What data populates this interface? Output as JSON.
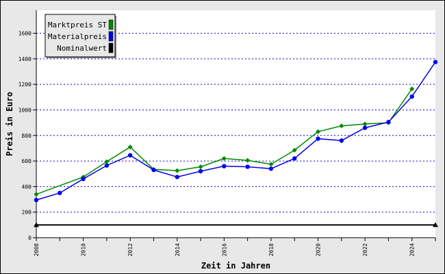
{
  "chart_data": {
    "type": "line",
    "xlabel": "Zeit in Jahren",
    "ylabel": "Preis in Euro",
    "xlim": [
      2008,
      2025
    ],
    "ylim": [
      0,
      1780
    ],
    "x_ticks": [
      2008,
      2010,
      2012,
      2014,
      2016,
      2018,
      2020,
      2022,
      2024
    ],
    "y_ticks": [
      0,
      200,
      400,
      600,
      800,
      1000,
      1200,
      1400,
      1600
    ],
    "grid": "horizontal dotted",
    "legend_position": "top-left",
    "series": [
      {
        "name": "Marktpreis ST",
        "color": "#008800",
        "marker": "diamond",
        "x": [
          2008,
          2010,
          2011,
          2012,
          2013,
          2014,
          2015,
          2016,
          2017,
          2018,
          2019,
          2020,
          2021,
          2022,
          2023,
          2024
        ],
        "values": [
          340,
          475,
          595,
          710,
          535,
          525,
          555,
          620,
          605,
          575,
          685,
          830,
          875,
          890,
          900,
          1165
        ]
      },
      {
        "name": "Materialpreis",
        "color": "#0000ee",
        "marker": "circle",
        "x": [
          2008,
          2009,
          2010,
          2011,
          2012,
          2013,
          2014,
          2015,
          2016,
          2017,
          2018,
          2019,
          2020,
          2021,
          2022,
          2023,
          2024,
          2025
        ],
        "values": [
          295,
          350,
          460,
          565,
          645,
          530,
          475,
          520,
          560,
          555,
          540,
          620,
          775,
          760,
          860,
          905,
          1105,
          1375
        ]
      },
      {
        "name": "Nominalwert",
        "color": "#000000",
        "marker": "triangle",
        "x": [
          2008,
          2025
        ],
        "values": [
          100,
          100
        ]
      }
    ]
  }
}
